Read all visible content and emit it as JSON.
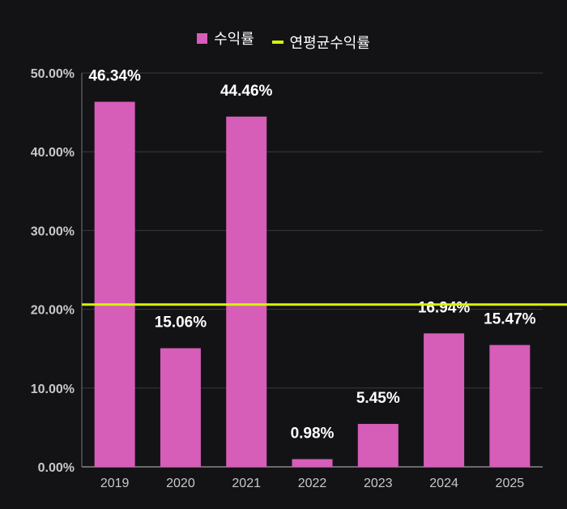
{
  "legend": {
    "series_1": "수익률",
    "series_2": "연평균수익률"
  },
  "colors": {
    "background": "#131316",
    "bar": "#d65db8",
    "avg_line": "#d7f30a",
    "grid": "#3a3a3e",
    "axis_text": "#c8c8c8",
    "label_text": "#ffffff"
  },
  "chart_data": {
    "type": "bar",
    "categories": [
      "2019",
      "2020",
      "2021",
      "2022",
      "2023",
      "2024",
      "2025"
    ],
    "series": [
      {
        "name": "수익률",
        "type": "bar",
        "values": [
          46.34,
          15.06,
          44.46,
          0.98,
          5.45,
          16.94,
          15.47
        ]
      },
      {
        "name": "연평균수익률",
        "type": "line",
        "value": 20.6
      }
    ],
    "data_labels": [
      "46.34%",
      "15.06%",
      "44.46%",
      "0.98%",
      "5.45%",
      "16.94%",
      "15.47%"
    ],
    "y_ticks": [
      "0.00%",
      "10.00%",
      "20.00%",
      "30.00%",
      "40.00%",
      "50.00%"
    ],
    "ylim": [
      0,
      50
    ],
    "grid": true,
    "legend_position": "top-center"
  }
}
